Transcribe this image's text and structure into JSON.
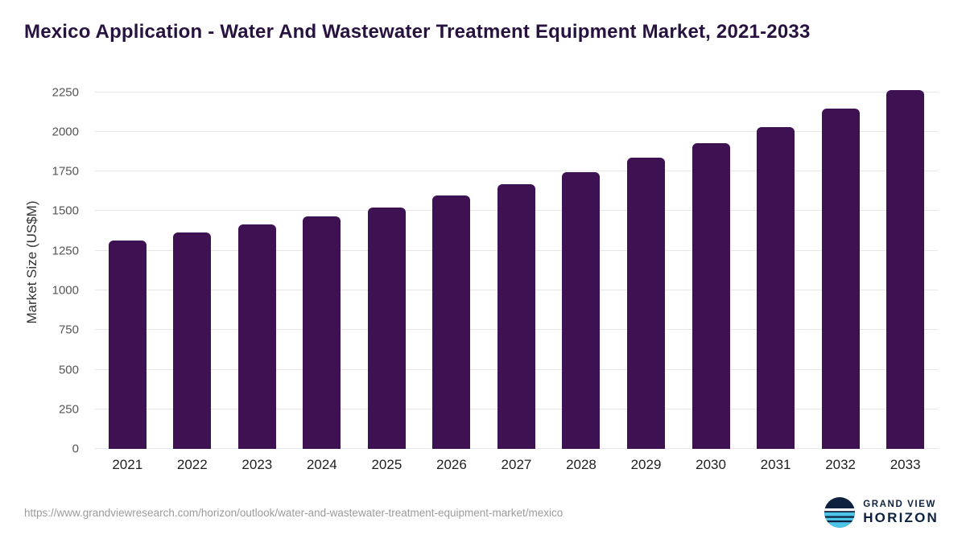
{
  "title": "Mexico Application - Water And Wastewater Treatment Equipment Market, 2021-2033",
  "footer": {
    "source_url": "https://www.grandviewresearch.com/horizon/outlook/water-and-wastewater-treatment-equipment-market/mexico",
    "logo_line1": "GRAND VIEW",
    "logo_line2": "HORIZON"
  },
  "colors": {
    "bar": "#3d1152",
    "grid": "#e7e7e7",
    "title": "#271240",
    "axis_text": "#555555",
    "logo_navy": "#0e2240",
    "logo_blue": "#4cc5e8"
  },
  "chart_data": {
    "type": "bar",
    "title": "Mexico Application - Water And Wastewater Treatment Equipment Market, 2021-2033",
    "categories": [
      "2021",
      "2022",
      "2023",
      "2024",
      "2025",
      "2026",
      "2027",
      "2028",
      "2029",
      "2030",
      "2031",
      "2032",
      "2033"
    ],
    "values": [
      1315,
      1365,
      1415,
      1465,
      1525,
      1600,
      1670,
      1745,
      1835,
      1930,
      2030,
      2145,
      2265
    ],
    "xlabel": "",
    "ylabel": "Market Size (US$M)",
    "ylim": [
      0,
      2350
    ],
    "yticks": [
      0,
      250,
      500,
      750,
      1000,
      1250,
      1500,
      1750,
      2000,
      2250
    ],
    "grid": true,
    "legend": false
  }
}
